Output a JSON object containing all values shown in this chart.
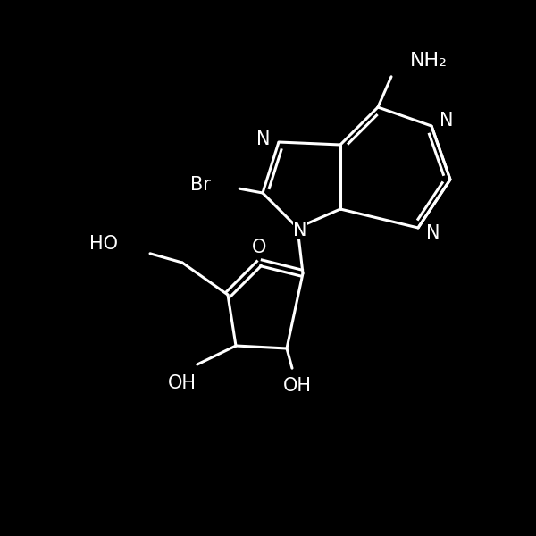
{
  "background_color": "#000000",
  "line_color": "#ffffff",
  "line_width": 2.2,
  "font_size": 15,
  "figsize": [
    6.0,
    6.0
  ],
  "dpi": 100,
  "xlim": [
    0,
    10
  ],
  "ylim": [
    0,
    10
  ]
}
